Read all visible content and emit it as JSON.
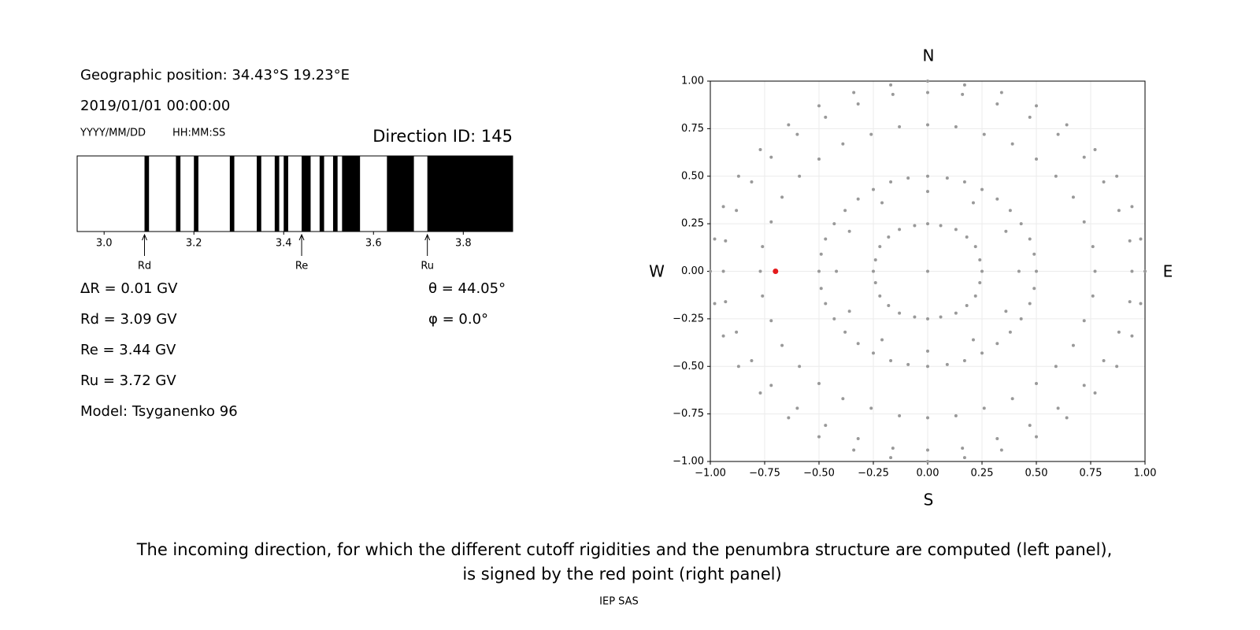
{
  "info": {
    "position": "Geographic position: 34.43°S 19.23°E",
    "datetime": "2019/01/01 00:00:00",
    "date_format": "YYYY/MM/DD",
    "time_format": "HH:MM:SS",
    "direction": "Direction ID: 145",
    "lines": [
      "ΔR = 0.01 GV",
      "Rd = 3.09 GV",
      "Re = 3.44 GV",
      "Ru = 3.72 GV",
      "Model: Tsyganenko 96"
    ],
    "angles": [
      "θ = 44.05°",
      "φ = 0.0°"
    ]
  },
  "chart_data": [
    {
      "type": "penumbra",
      "xlim": [
        2.94,
        3.91
      ],
      "xticks": [
        {
          "value": 3,
          "label": "3.0"
        },
        3.2,
        3.4,
        3.6,
        3.8
      ],
      "color": "#000000",
      "bands": [
        [
          3.09,
          3.1
        ],
        [
          3.16,
          3.17
        ],
        [
          3.2,
          3.21
        ],
        [
          3.28,
          3.29
        ],
        [
          3.34,
          3.35
        ],
        [
          3.38,
          3.39
        ],
        [
          3.4,
          3.41
        ],
        [
          3.44,
          3.46
        ],
        [
          3.48,
          3.49
        ],
        [
          3.51,
          3.52
        ],
        [
          3.53,
          3.57
        ],
        [
          3.63,
          3.69
        ],
        [
          3.72,
          3.91
        ]
      ],
      "annotations": [
        {
          "label": "Rd",
          "value": 3.09
        },
        {
          "label": "Re",
          "value": 3.44
        },
        {
          "label": "Ru",
          "value": 3.72
        }
      ]
    },
    {
      "type": "scatter",
      "xlim": [
        -1,
        1
      ],
      "ylim": [
        -1,
        1
      ],
      "grid": true,
      "color": "#999999",
      "xticks": [
        {
          "value": -1,
          "label": "−1.00"
        },
        {
          "value": -0.75,
          "label": "−0.75"
        },
        {
          "value": -0.5,
          "label": "−0.50"
        },
        {
          "value": -0.25,
          "label": "−0.25"
        },
        {
          "value": 0,
          "label": "0.00"
        },
        {
          "value": 0.25,
          "label": "0.25"
        },
        {
          "value": 0.5,
          "label": "0.50"
        },
        {
          "value": 0.75,
          "label": "0.75"
        },
        {
          "value": 1,
          "label": "1.00"
        }
      ],
      "yticks": [
        {
          "value": -1,
          "label": "−1.00"
        },
        {
          "value": -0.75,
          "label": "−0.75"
        },
        {
          "value": -0.5,
          "label": "−0.50"
        },
        {
          "value": -0.25,
          "label": "−0.25"
        },
        {
          "value": 0,
          "label": "0.00"
        },
        {
          "value": 0.25,
          "label": "0.25"
        },
        {
          "value": 0.5,
          "label": "0.50"
        },
        {
          "value": 0.75,
          "label": "0.75"
        },
        {
          "value": 1,
          "label": "1.00"
        }
      ],
      "x": [
        0.5,
        0.49,
        0.47,
        0.43,
        0.38,
        0.32,
        0.25,
        0.17,
        0.09,
        0,
        -0.09,
        -0.17,
        -0.25,
        -0.32,
        -0.38,
        -0.43,
        -0.47,
        -0.49,
        -0.5,
        -0.49,
        -0.47,
        -0.43,
        -0.38,
        -0.32,
        -0.25,
        -0.17,
        -0.09,
        0,
        0.09,
        0.17,
        0.25,
        0.32,
        0.38,
        0.43,
        0.47,
        0.49,
        0.77,
        0.76,
        0.72,
        0.67,
        0.59,
        0.5,
        0.39,
        0.26,
        0.13,
        0,
        -0.13,
        -0.26,
        -0.39,
        -0.5,
        -0.59,
        -0.67,
        -0.72,
        -0.76,
        -0.77,
        -0.76,
        -0.72,
        -0.67,
        -0.59,
        -0.5,
        -0.39,
        -0.26,
        -0.13,
        0,
        0.13,
        0.26,
        0.39,
        0.5,
        0.59,
        0.67,
        0.72,
        0.76,
        0.94,
        0.93,
        0.88,
        0.81,
        0.72,
        0.6,
        0.47,
        0.32,
        0.16,
        0,
        -0.16,
        -0.32,
        -0.47,
        -0.6,
        -0.72,
        -0.81,
        -0.88,
        -0.93,
        -0.94,
        -0.93,
        -0.88,
        -0.81,
        -0.72,
        -0.6,
        -0.47,
        -0.32,
        -0.16,
        0,
        0.16,
        0.32,
        0.47,
        0.6,
        0.72,
        0.81,
        0.88,
        0.93,
        1,
        0.98,
        0.94,
        0.87,
        0.77,
        0.64,
        0.5,
        0.34,
        0.17,
        0,
        -0.17,
        -0.34,
        -0.5,
        -0.64,
        -0.77,
        -0.87,
        -0.94,
        -0.98,
        -1,
        -0.98,
        -0.94,
        -0.87,
        -0.77,
        -0.64,
        -0.5,
        -0.34,
        -0.17,
        0,
        0.17,
        0.34,
        0.5,
        0.64,
        0.77,
        0.87,
        0.94,
        0.98,
        0.25,
        0.24,
        0.22,
        0.18,
        0.13,
        0.06,
        0,
        -0.06,
        -0.13,
        -0.18,
        -0.22,
        -0.24,
        -0.25,
        -0.24,
        -0.22,
        -0.18,
        -0.13,
        -0.06,
        0,
        0.06,
        0.13,
        0.18,
        0.22,
        0.24,
        0.42,
        0.36,
        0.21,
        0,
        -0.21,
        -0.36,
        -0.42,
        -0.36,
        -0.21,
        0,
        0.21,
        0.36,
        0
      ],
      "y": [
        0,
        0.09,
        0.17,
        0.25,
        0.32,
        0.38,
        0.43,
        0.47,
        0.49,
        0.5,
        0.49,
        0.47,
        0.43,
        0.38,
        0.32,
        0.25,
        0.17,
        0.09,
        0,
        -0.09,
        -0.17,
        -0.25,
        -0.32,
        -0.38,
        -0.43,
        -0.47,
        -0.49,
        -0.5,
        -0.49,
        -0.47,
        -0.43,
        -0.38,
        -0.32,
        -0.25,
        -0.17,
        -0.09,
        0,
        0.13,
        0.26,
        0.39,
        0.5,
        0.59,
        0.67,
        0.72,
        0.76,
        0.77,
        0.76,
        0.72,
        0.67,
        0.59,
        0.5,
        0.39,
        0.26,
        0.13,
        0,
        -0.13,
        -0.26,
        -0.39,
        -0.5,
        -0.59,
        -0.67,
        -0.72,
        -0.76,
        -0.77,
        -0.76,
        -0.72,
        -0.67,
        -0.59,
        -0.5,
        -0.39,
        -0.26,
        -0.13,
        0,
        0.16,
        0.32,
        0.47,
        0.6,
        0.72,
        0.81,
        0.88,
        0.93,
        0.94,
        0.93,
        0.88,
        0.81,
        0.72,
        0.6,
        0.47,
        0.32,
        0.16,
        0,
        -0.16,
        -0.32,
        -0.47,
        -0.6,
        -0.72,
        -0.81,
        -0.88,
        -0.93,
        -0.94,
        -0.93,
        -0.88,
        -0.81,
        -0.72,
        -0.6,
        -0.47,
        -0.32,
        -0.16,
        0,
        0.17,
        0.34,
        0.5,
        0.64,
        0.77,
        0.87,
        0.94,
        0.98,
        1,
        0.98,
        0.94,
        0.87,
        0.77,
        0.64,
        0.5,
        0.34,
        0.17,
        0,
        -0.17,
        -0.34,
        -0.5,
        -0.64,
        -0.77,
        -0.87,
        -0.94,
        -0.98,
        -1,
        -0.98,
        -0.94,
        -0.87,
        -0.77,
        -0.64,
        -0.5,
        -0.34,
        -0.17,
        0,
        0.06,
        0.13,
        0.18,
        0.22,
        0.24,
        0.25,
        0.24,
        0.22,
        0.18,
        0.13,
        0.06,
        0,
        -0.06,
        -0.13,
        -0.18,
        -0.22,
        -0.24,
        -0.25,
        -0.24,
        -0.22,
        -0.18,
        -0.13,
        -0.06,
        0,
        0.21,
        0.36,
        0.42,
        0.36,
        0.21,
        0,
        -0.21,
        -0.36,
        -0.42,
        -0.36,
        -0.21,
        0
      ],
      "highlight": {
        "x": -0.7,
        "y": 0,
        "color": "#e41a1c"
      },
      "directions": {
        "north": "N",
        "south": "S",
        "west": "W",
        "east": "E"
      }
    }
  ],
  "caption": [
    "The incoming direction, for which the different cutoff rigidities and the penumbra structure are computed (left panel),",
    "is signed by the red point (right panel)"
  ],
  "footer": "IEP SAS"
}
